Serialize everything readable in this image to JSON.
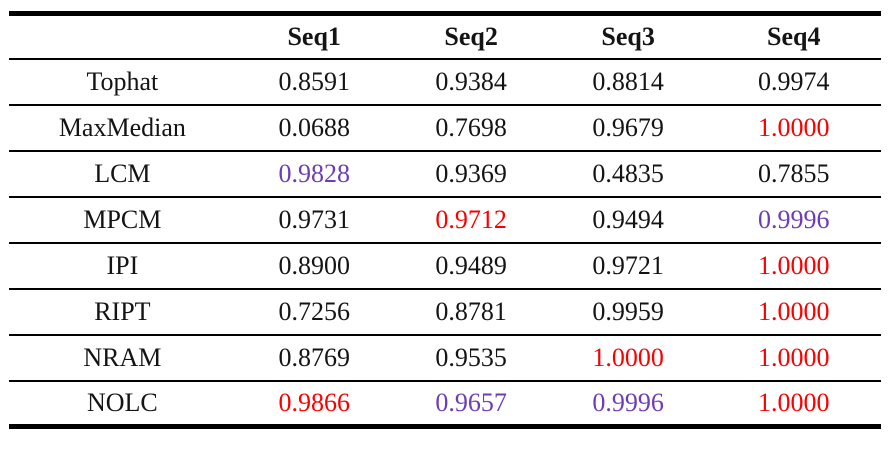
{
  "table": {
    "columns": [
      "",
      "Seq1",
      "Seq2",
      "Seq3",
      "Seq4"
    ],
    "rows": [
      {
        "label": "Tophat",
        "values": [
          {
            "text": "0.8591",
            "color": "black"
          },
          {
            "text": "0.9384",
            "color": "black"
          },
          {
            "text": "0.8814",
            "color": "black"
          },
          {
            "text": "0.9974",
            "color": "black"
          }
        ]
      },
      {
        "label": "MaxMedian",
        "values": [
          {
            "text": "0.0688",
            "color": "black"
          },
          {
            "text": "0.7698",
            "color": "black"
          },
          {
            "text": "0.9679",
            "color": "black"
          },
          {
            "text": "1.0000",
            "color": "red"
          }
        ]
      },
      {
        "label": "LCM",
        "values": [
          {
            "text": "0.9828",
            "color": "purple"
          },
          {
            "text": "0.9369",
            "color": "black"
          },
          {
            "text": "0.4835",
            "color": "black"
          },
          {
            "text": "0.7855",
            "color": "black"
          }
        ]
      },
      {
        "label": "MPCM",
        "values": [
          {
            "text": "0.9731",
            "color": "black"
          },
          {
            "text": "0.9712",
            "color": "red"
          },
          {
            "text": "0.9494",
            "color": "black"
          },
          {
            "text": "0.9996",
            "color": "purple"
          }
        ]
      },
      {
        "label": "IPI",
        "values": [
          {
            "text": "0.8900",
            "color": "black"
          },
          {
            "text": "0.9489",
            "color": "black"
          },
          {
            "text": "0.9721",
            "color": "black"
          },
          {
            "text": "1.0000",
            "color": "red"
          }
        ]
      },
      {
        "label": "RIPT",
        "values": [
          {
            "text": "0.7256",
            "color": "black"
          },
          {
            "text": "0.8781",
            "color": "black"
          },
          {
            "text": "0.9959",
            "color": "black"
          },
          {
            "text": "1.0000",
            "color": "red"
          }
        ]
      },
      {
        "label": "NRAM",
        "values": [
          {
            "text": "0.8769",
            "color": "black"
          },
          {
            "text": "0.9535",
            "color": "black"
          },
          {
            "text": "1.0000",
            "color": "red"
          },
          {
            "text": "1.0000",
            "color": "red"
          }
        ]
      },
      {
        "label": "NOLC",
        "values": [
          {
            "text": "0.9866",
            "color": "red"
          },
          {
            "text": "0.9657",
            "color": "purple"
          },
          {
            "text": "0.9996",
            "color": "purple"
          },
          {
            "text": "1.0000",
            "color": "red"
          }
        ]
      }
    ]
  },
  "colors": {
    "black": "#141414",
    "red": "#fa0000",
    "purple": "#6e3cb4"
  }
}
